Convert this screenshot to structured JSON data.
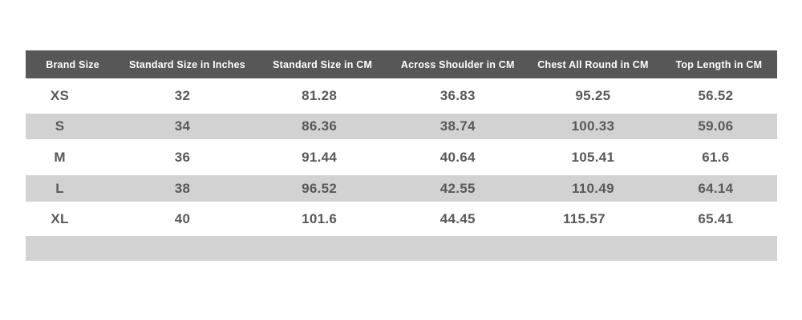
{
  "chart_data": {
    "type": "table",
    "columns": [
      "Brand Size",
      "Standard Size in Inches",
      "Standard Size in CM",
      "Across Shoulder in CM",
      "Chest All Round in CM",
      "Top Length in CM"
    ],
    "rows": [
      [
        "XS",
        "32",
        "81.28",
        "36.83",
        "95.25",
        "56.52"
      ],
      [
        "S",
        "34",
        "86.36",
        "38.74",
        "100.33",
        "59.06"
      ],
      [
        "M",
        "36",
        "91.44",
        "40.64",
        "105.41",
        "61.6"
      ],
      [
        "L",
        "38",
        "96.52",
        "42.55",
        "110.49",
        "64.14"
      ],
      [
        "XL",
        "40",
        "101.6",
        "44.45",
        "115.57",
        "65.41"
      ]
    ],
    "layout_hints": {
      "striped_rows": "even data rows shaded gray",
      "empty_footer_bar": true
    }
  },
  "colors": {
    "header_bg": "#575757",
    "header_text": "#ffffff",
    "row_stripe_bg": "#d2d2d2",
    "row_plain_bg": "#ffffff",
    "cell_text": "#595959",
    "page_bg": "#ffffff"
  }
}
